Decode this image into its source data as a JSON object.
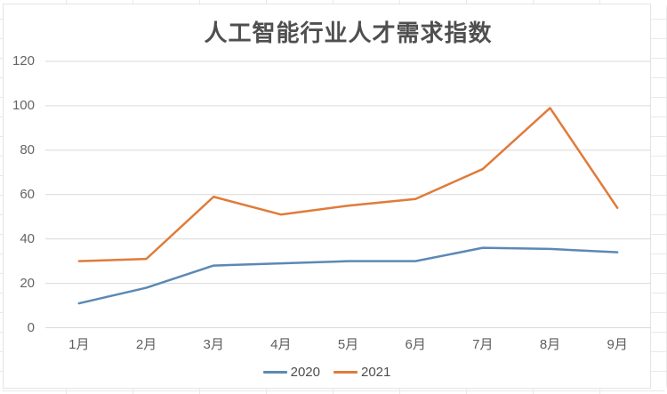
{
  "chart_data": {
    "type": "line",
    "title": "人工智能行业人才需求指数",
    "categories": [
      "1月",
      "2月",
      "3月",
      "4月",
      "5月",
      "6月",
      "7月",
      "8月",
      "9月"
    ],
    "series": [
      {
        "name": "2020",
        "color": "#5b89b4",
        "values": [
          11,
          18,
          28,
          29,
          30,
          30,
          36,
          35.5,
          34
        ]
      },
      {
        "name": "2021",
        "color": "#e07b39",
        "values": [
          30,
          31,
          59,
          51,
          55,
          58,
          71.5,
          99,
          54
        ]
      }
    ],
    "xlabel": "",
    "ylabel": "",
    "y_ticks": [
      0,
      20,
      40,
      60,
      80,
      100,
      120
    ],
    "ylim": [
      0,
      120
    ],
    "grid": "horizontal",
    "gridline_color": "#d9d9d9",
    "legend_position": "bottom"
  }
}
